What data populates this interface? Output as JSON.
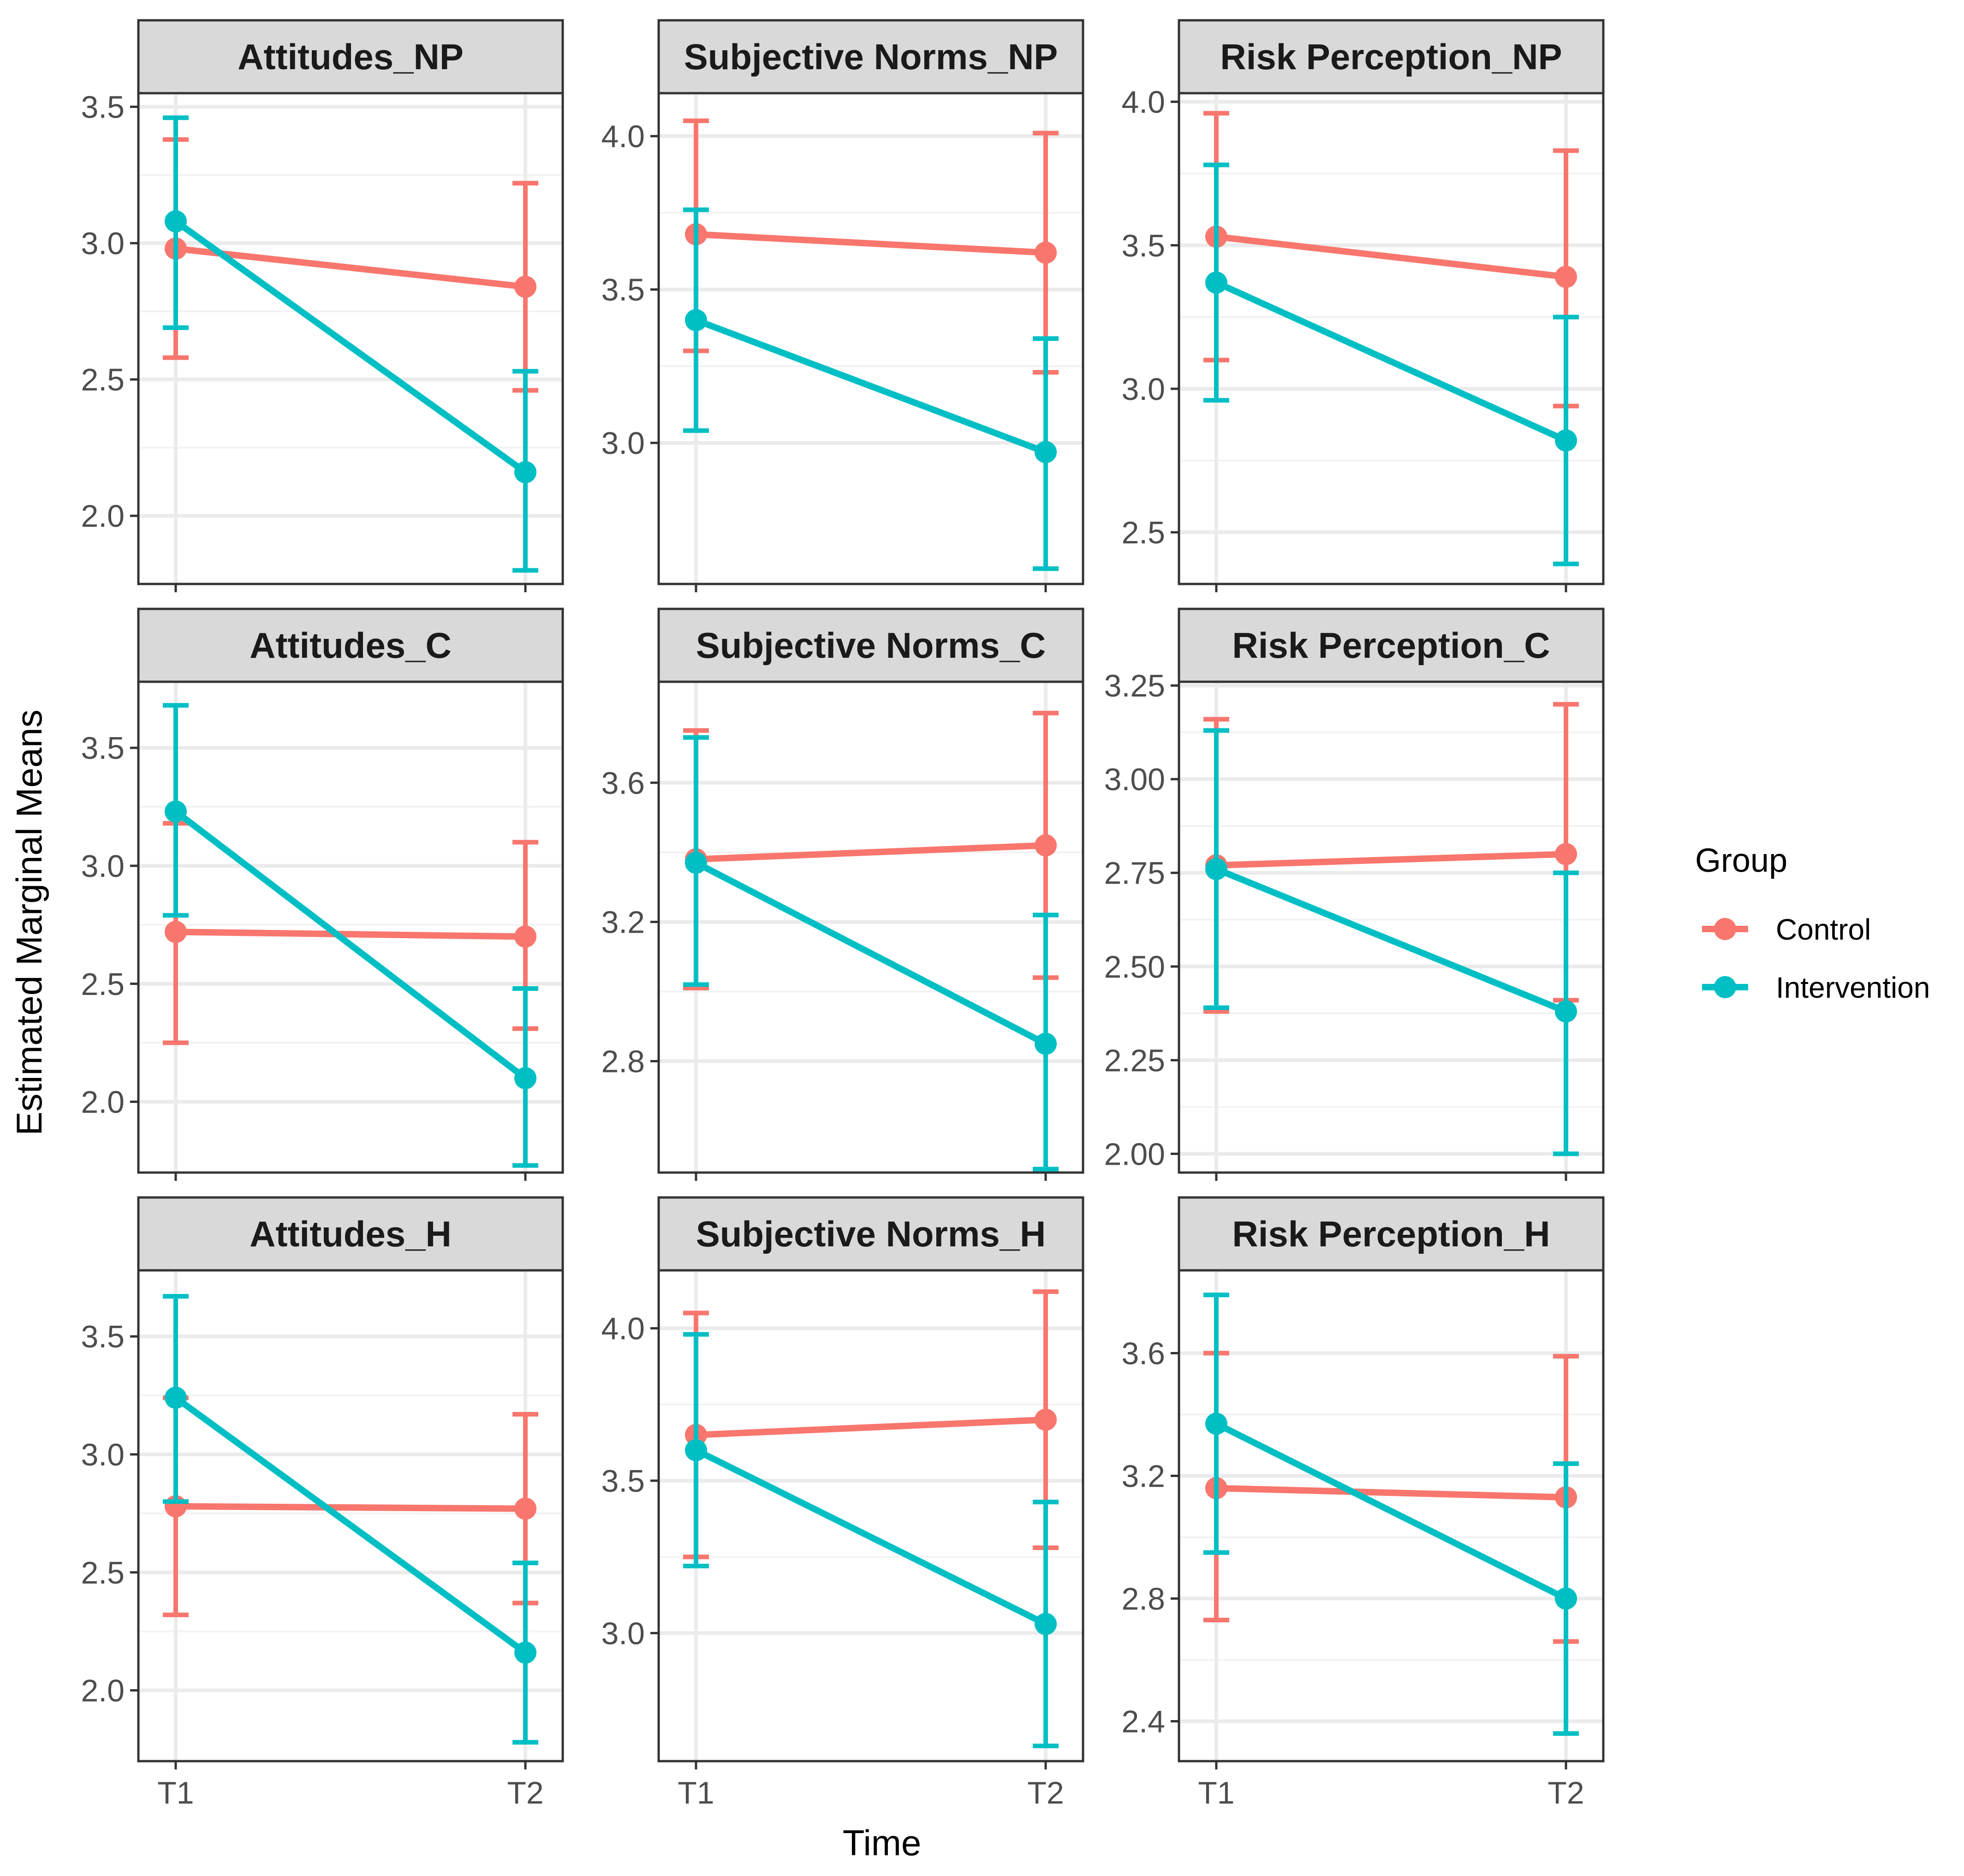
{
  "chart_data": {
    "type": "line",
    "x_axis_title": "Time",
    "y_axis_title": "Estimated Marginal Means",
    "categories": [
      "T1",
      "T2"
    ],
    "legend": {
      "title": "Group",
      "position": "right",
      "entries": [
        {
          "name": "Control",
          "color": "#F8766D"
        },
        {
          "name": "Intervention",
          "color": "#00BFC4"
        }
      ]
    },
    "panels": [
      {
        "title": "Attitudes_NP",
        "ylim": [
          1.75,
          3.55
        ],
        "yticks": [
          2.0,
          2.5,
          3.0,
          3.5
        ],
        "ytick_labels": [
          "2.0",
          "2.5",
          "3.0",
          "3.5"
        ],
        "series": [
          {
            "name": "Control",
            "mean": [
              2.98,
              2.84
            ],
            "lower": [
              2.58,
              2.46
            ],
            "upper": [
              3.38,
              3.22
            ]
          },
          {
            "name": "Intervention",
            "mean": [
              3.08,
              2.16
            ],
            "lower": [
              2.69,
              1.8
            ],
            "upper": [
              3.46,
              2.53
            ]
          }
        ]
      },
      {
        "title": "Subjective Norms_NP",
        "ylim": [
          2.54,
          4.14
        ],
        "yticks": [
          3.0,
          3.5,
          4.0
        ],
        "ytick_labels": [
          "3.0",
          "3.5",
          "4.0"
        ],
        "series": [
          {
            "name": "Control",
            "mean": [
              3.68,
              3.62
            ],
            "lower": [
              3.3,
              3.23
            ],
            "upper": [
              4.05,
              4.01
            ]
          },
          {
            "name": "Intervention",
            "mean": [
              3.4,
              2.97
            ],
            "lower": [
              3.04,
              2.59
            ],
            "upper": [
              3.76,
              3.34
            ]
          }
        ]
      },
      {
        "title": "Risk Perception_NP",
        "ylim": [
          2.32,
          4.03
        ],
        "yticks": [
          2.5,
          3.0,
          3.5,
          4.0
        ],
        "ytick_labels": [
          "2.5",
          "3.0",
          "3.5",
          "4.0"
        ],
        "series": [
          {
            "name": "Control",
            "mean": [
              3.53,
              3.39
            ],
            "lower": [
              3.1,
              2.94
            ],
            "upper": [
              3.96,
              3.83
            ]
          },
          {
            "name": "Intervention",
            "mean": [
              3.37,
              2.82
            ],
            "lower": [
              2.96,
              2.39
            ],
            "upper": [
              3.78,
              3.25
            ]
          }
        ]
      },
      {
        "title": "Attitudes_C",
        "ylim": [
          1.7,
          3.78
        ],
        "yticks": [
          2.0,
          2.5,
          3.0,
          3.5
        ],
        "ytick_labels": [
          "2.0",
          "2.5",
          "3.0",
          "3.5"
        ],
        "series": [
          {
            "name": "Control",
            "mean": [
              2.72,
              2.7
            ],
            "lower": [
              2.25,
              2.31
            ],
            "upper": [
              3.18,
              3.1
            ]
          },
          {
            "name": "Intervention",
            "mean": [
              3.23,
              2.1
            ],
            "lower": [
              2.79,
              1.73
            ],
            "upper": [
              3.68,
              2.48
            ]
          }
        ]
      },
      {
        "title": "Subjective Norms_C",
        "ylim": [
          2.48,
          3.89
        ],
        "yticks": [
          2.8,
          3.2,
          3.6
        ],
        "ytick_labels": [
          "2.8",
          "3.2",
          "3.6"
        ],
        "series": [
          {
            "name": "Control",
            "mean": [
              3.38,
              3.42
            ],
            "lower": [
              3.01,
              3.04
            ],
            "upper": [
              3.75,
              3.8
            ]
          },
          {
            "name": "Intervention",
            "mean": [
              3.37,
              2.85
            ],
            "lower": [
              3.02,
              2.49
            ],
            "upper": [
              3.73,
              3.22
            ]
          }
        ]
      },
      {
        "title": "Risk Perception_C",
        "ylim": [
          1.95,
          3.26
        ],
        "yticks": [
          2.0,
          2.25,
          2.5,
          2.75,
          3.0,
          3.25
        ],
        "ytick_labels": [
          "2.00",
          "2.25",
          "2.50",
          "2.75",
          "3.00",
          "3.25"
        ],
        "series": [
          {
            "name": "Control",
            "mean": [
              2.77,
              2.8
            ],
            "lower": [
              2.38,
              2.41
            ],
            "upper": [
              3.16,
              3.2
            ]
          },
          {
            "name": "Intervention",
            "mean": [
              2.76,
              2.38
            ],
            "lower": [
              2.39,
              2.0
            ],
            "upper": [
              3.13,
              2.75
            ]
          }
        ]
      },
      {
        "title": "Attitudes_H",
        "ylim": [
          1.7,
          3.78
        ],
        "yticks": [
          2.0,
          2.5,
          3.0,
          3.5
        ],
        "ytick_labels": [
          "2.0",
          "2.5",
          "3.0",
          "3.5"
        ],
        "series": [
          {
            "name": "Control",
            "mean": [
              2.78,
              2.77
            ],
            "lower": [
              2.32,
              2.37
            ],
            "upper": [
              3.24,
              3.17
            ]
          },
          {
            "name": "Intervention",
            "mean": [
              3.24,
              2.16
            ],
            "lower": [
              2.8,
              1.78
            ],
            "upper": [
              3.67,
              2.54
            ]
          }
        ]
      },
      {
        "title": "Subjective Norms_H",
        "ylim": [
          2.58,
          4.19
        ],
        "yticks": [
          3.0,
          3.5,
          4.0
        ],
        "ytick_labels": [
          "3.0",
          "3.5",
          "4.0"
        ],
        "series": [
          {
            "name": "Control",
            "mean": [
              3.65,
              3.7
            ],
            "lower": [
              3.25,
              3.28
            ],
            "upper": [
              4.05,
              4.12
            ]
          },
          {
            "name": "Intervention",
            "mean": [
              3.6,
              3.03
            ],
            "lower": [
              3.22,
              2.63
            ],
            "upper": [
              3.98,
              3.43
            ]
          }
        ]
      },
      {
        "title": "Risk Perception_H",
        "ylim": [
          2.27,
          3.87
        ],
        "yticks": [
          2.4,
          2.8,
          3.2,
          3.6
        ],
        "ytick_labels": [
          "2.4",
          "2.8",
          "3.2",
          "3.6"
        ],
        "series": [
          {
            "name": "Control",
            "mean": [
              3.16,
              3.13
            ],
            "lower": [
              2.73,
              2.66
            ],
            "upper": [
              3.6,
              3.59
            ]
          },
          {
            "name": "Intervention",
            "mean": [
              3.37,
              2.8
            ],
            "lower": [
              2.95,
              2.36
            ],
            "upper": [
              3.79,
              3.24
            ]
          }
        ]
      }
    ]
  }
}
